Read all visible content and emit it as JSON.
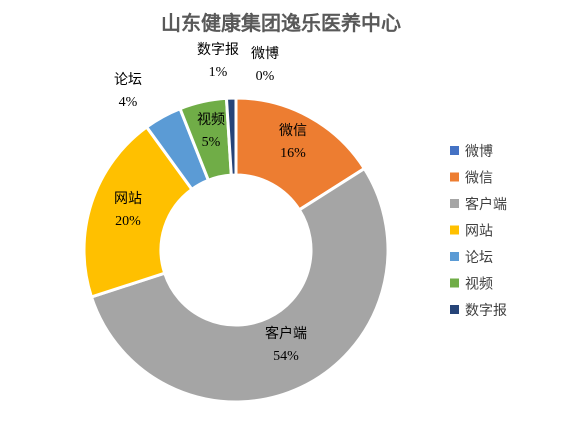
{
  "chart_data": {
    "type": "pie",
    "variant": "doughnut",
    "title": "山东健康集团逸乐医养中心",
    "legend_position": "right",
    "slices": [
      {
        "name": "微博",
        "value": 0,
        "pct_label": "0%",
        "color": "#4472C4"
      },
      {
        "name": "微信",
        "value": 16,
        "pct_label": "16%",
        "color": "#ED7D31"
      },
      {
        "name": "客户端",
        "value": 54,
        "pct_label": "54%",
        "color": "#A5A5A5"
      },
      {
        "name": "网站",
        "value": 20,
        "pct_label": "20%",
        "color": "#FFC000"
      },
      {
        "name": "论坛",
        "value": 4,
        "pct_label": "4%",
        "color": "#5B9BD5"
      },
      {
        "name": "视频",
        "value": 5,
        "pct_label": "5%",
        "color": "#70AD47"
      },
      {
        "name": "数字报",
        "value": 1,
        "pct_label": "1%",
        "color": "#264478"
      }
    ]
  }
}
